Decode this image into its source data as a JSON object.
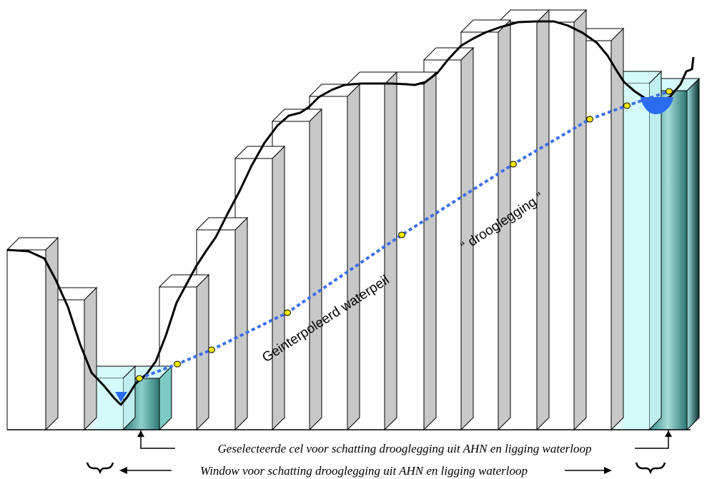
{
  "labels": {
    "interpolated_level": "Geinterpoleerd waterpeil",
    "freeboard": "“ drooglegging ”"
  },
  "captions": {
    "selected_cell": "Geselecteerde cel voor schatting drooglegging uit AHN en ligging waterloop",
    "window": "Window voor schatting drooglegging uit AHN en ligging waterloop"
  },
  "colors": {
    "cell_fill": "#ffffff",
    "cell_side": "#c8c8c8",
    "window_fill": "#d4fafa",
    "selected_fill": "#2f8f8f",
    "water": "#2a6cf0",
    "interp_line": "#3a6fe8",
    "point_fill": "#f2e600",
    "terrain_line": "#000000"
  },
  "icons": [
    "left-brace-icon",
    "right-brace-icon",
    "arrow-left-icon",
    "arrow-right-icon",
    "arrow-up-icon"
  ]
}
